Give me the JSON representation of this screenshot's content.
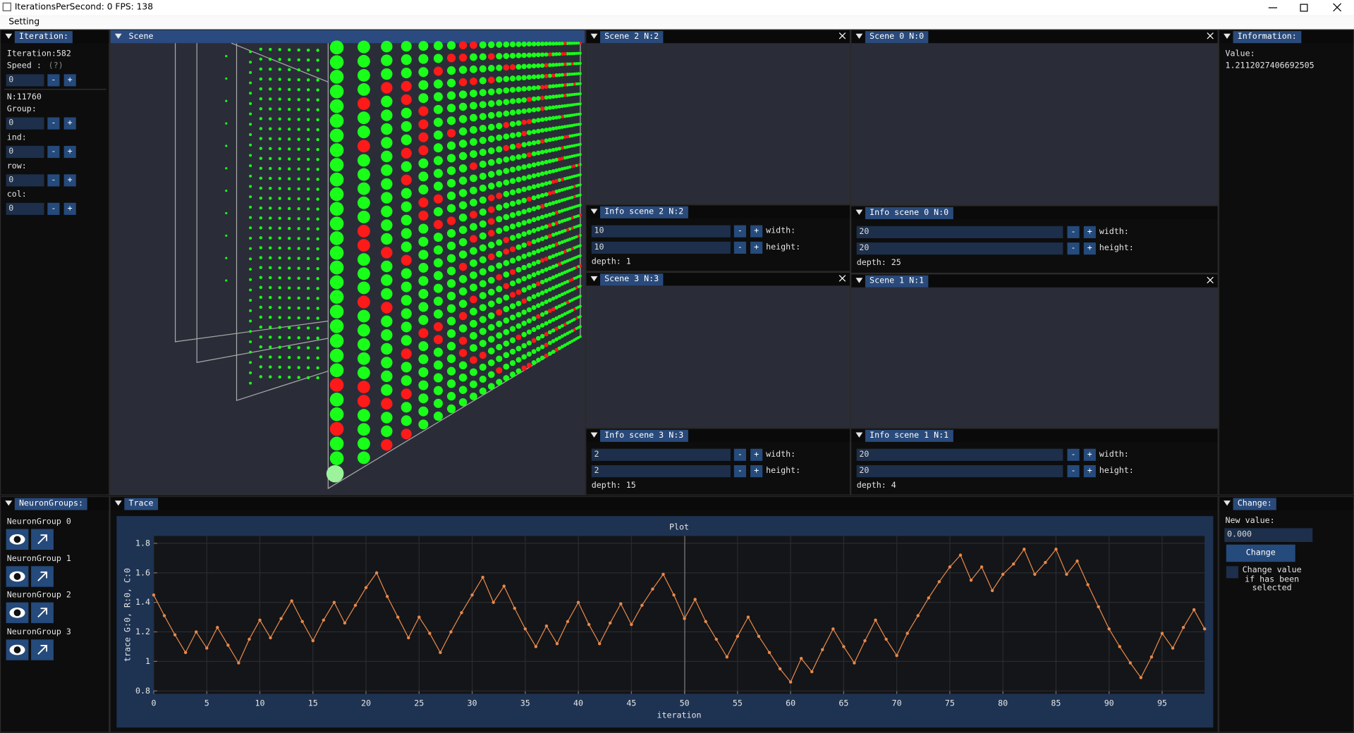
{
  "window": {
    "title": "IterationsPerSecond: 0 FPS: 138"
  },
  "menu": [
    "Setting"
  ],
  "buttons": {
    "minus": "-",
    "plus": "+"
  },
  "iteration_panel": {
    "title": "Iteration:",
    "iteration": "Iteration:582",
    "speed_label": "Speed :",
    "help": "(?)",
    "speed": "0",
    "n": "N:11760",
    "fields": [
      {
        "label": "Group:",
        "value": "0"
      },
      {
        "label": "ind:",
        "value": "0"
      },
      {
        "label": "row:",
        "value": "0"
      },
      {
        "label": "col:",
        "value": "0"
      }
    ]
  },
  "scene_panel": {
    "title": "Scene"
  },
  "labels": {
    "width": "width:",
    "height": "height:"
  },
  "scenes": [
    {
      "title": "Scene 2 N:2",
      "info_title": "Info scene 2 N:2",
      "width": "10",
      "height": "10",
      "depth": "depth: 1"
    },
    {
      "title": "Scene 0 N:0",
      "info_title": "Info scene 0 N:0",
      "width": "20",
      "height": "20",
      "depth": "depth: 25"
    },
    {
      "title": "Scene 3 N:3",
      "info_title": "Info scene 3 N:3",
      "width": "2",
      "height": "2",
      "depth": "depth: 15"
    },
    {
      "title": "Scene 1 N:1",
      "info_title": "Info scene 1 N:1",
      "width": "20",
      "height": "20",
      "depth": "depth: 4"
    }
  ],
  "information": {
    "title": "Information:",
    "label": "Value:",
    "value": "1.2112027406692505"
  },
  "neuron_groups": {
    "title": "NeuronGroups:",
    "groups": [
      "NeuronGroup 0",
      "NeuronGroup 1",
      "NeuronGroup 2",
      "NeuronGroup 3"
    ]
  },
  "trace": {
    "title": "Trace"
  },
  "change": {
    "title": "Change:",
    "label": "New value:",
    "input": "0.000",
    "button": "Change",
    "checkbox_label": "Change value if has been selected"
  },
  "chart_data": {
    "type": "line",
    "title": "Plot",
    "x_label": "iteration",
    "y_label": "trace G:0, R:0, C:0",
    "x": [
      0,
      1,
      2,
      3,
      4,
      5,
      6,
      7,
      8,
      9,
      10,
      11,
      12,
      13,
      14,
      15,
      16,
      17,
      18,
      19,
      20,
      21,
      22,
      23,
      24,
      25,
      26,
      27,
      28,
      29,
      30,
      31,
      32,
      33,
      34,
      35,
      36,
      37,
      38,
      39,
      40,
      41,
      42,
      43,
      44,
      45,
      46,
      47,
      48,
      49,
      50,
      51,
      52,
      53,
      54,
      55,
      56,
      57,
      58,
      59,
      60,
      61,
      62,
      63,
      64,
      65,
      66,
      67,
      68,
      69,
      70,
      71,
      72,
      73,
      74,
      75,
      76,
      77,
      78,
      79,
      80,
      81,
      82,
      83,
      84,
      85,
      86,
      87,
      88,
      89,
      90,
      91,
      92,
      93,
      94,
      95,
      96,
      97,
      98,
      99
    ],
    "values": [
      1.45,
      1.31,
      1.18,
      1.06,
      1.2,
      1.09,
      1.23,
      1.11,
      0.99,
      1.15,
      1.28,
      1.16,
      1.29,
      1.41,
      1.27,
      1.14,
      1.28,
      1.4,
      1.26,
      1.38,
      1.5,
      1.6,
      1.44,
      1.3,
      1.16,
      1.3,
      1.19,
      1.06,
      1.2,
      1.33,
      1.45,
      1.57,
      1.4,
      1.51,
      1.36,
      1.22,
      1.1,
      1.24,
      1.12,
      1.27,
      1.4,
      1.25,
      1.12,
      1.26,
      1.39,
      1.25,
      1.38,
      1.49,
      1.59,
      1.45,
      1.29,
      1.42,
      1.27,
      1.15,
      1.03,
      1.17,
      1.3,
      1.17,
      1.06,
      0.95,
      0.86,
      1.02,
      0.93,
      1.08,
      1.22,
      1.1,
      0.99,
      1.14,
      1.28,
      1.15,
      1.04,
      1.19,
      1.31,
      1.43,
      1.54,
      1.64,
      1.72,
      1.55,
      1.64,
      1.48,
      1.59,
      1.66,
      1.76,
      1.59,
      1.67,
      1.76,
      1.59,
      1.68,
      1.52,
      1.37,
      1.22,
      1.1,
      0.99,
      0.89,
      1.03,
      1.19,
      1.09,
      1.23,
      1.35,
      1.22
    ],
    "color": "#e8894a",
    "xlim": [
      0,
      99
    ],
    "ylim": [
      0.78,
      1.85
    ],
    "xticks": [
      0,
      5,
      10,
      15,
      20,
      25,
      30,
      35,
      40,
      45,
      50,
      55,
      60,
      65,
      70,
      75,
      80,
      85,
      90,
      95
    ],
    "yticks": [
      0.8,
      1,
      1.2,
      1.4,
      1.6,
      1.8
    ],
    "grid": true
  }
}
